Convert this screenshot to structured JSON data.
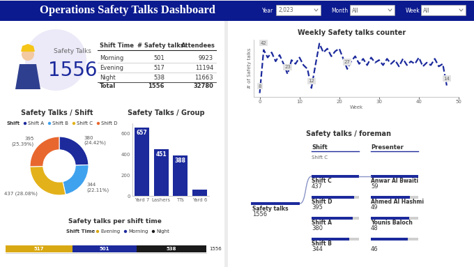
{
  "header": {
    "title": "Operations Safety Talks Dashboard",
    "filters": [
      {
        "label": "Year",
        "value": "2,023"
      },
      {
        "label": "Month",
        "value": "All"
      },
      {
        "label": "Week",
        "value": "All"
      }
    ]
  },
  "kpi": {
    "label": "Safety Talks",
    "value": 1556
  },
  "table": {
    "columns": [
      "Shift Time",
      "# Safety talks",
      "Attendees"
    ],
    "rows": [
      [
        "Morning",
        501,
        9923
      ],
      [
        "Evening",
        517,
        11194
      ],
      [
        "Night",
        538,
        11663
      ],
      [
        "Total",
        1556,
        32780
      ]
    ]
  },
  "chart_data": [
    {
      "type": "donut",
      "title": "Safety Talks / Shift",
      "legend_title": "Shift",
      "legend": "top",
      "categories": [
        "Shift A",
        "Shift B",
        "Shift C",
        "Shift D"
      ],
      "values": [
        380,
        344,
        437,
        395
      ],
      "value_labels": [
        "380\n(24.42%)",
        "344\n(22.11%)",
        "437 (28.08%)",
        "395\n(25.39%)"
      ],
      "colors": [
        "#1c2a9c",
        "#3fa2ee",
        "#e3b21a",
        "#e8672f"
      ]
    },
    {
      "type": "bar",
      "title": "Safety Talks / Group",
      "categories": [
        "Yard 7",
        "Lashers",
        "TTs",
        "Yard 6"
      ],
      "values": [
        657,
        451,
        388,
        60
      ],
      "value_labels": [
        "657",
        "451",
        "388",
        null
      ],
      "color": "#1c2a9c",
      "ylim": [
        0,
        700
      ],
      "yticks": [
        0,
        200,
        400,
        600
      ],
      "grid": false
    },
    {
      "type": "bar",
      "orientation": "horizontal",
      "stacked": true,
      "data_labels": true,
      "title": "Safety talks per shift time",
      "legend_title": "Shift Time",
      "legend": "top",
      "categories": [
        null
      ],
      "series": [
        {
          "name": "Evening",
          "color": "#d9a914",
          "values": [
            517
          ]
        },
        {
          "name": "Morning",
          "color": "#1c2a9c",
          "values": [
            501
          ]
        },
        {
          "name": "Night",
          "color": "#1a1a1a",
          "values": [
            538
          ]
        }
      ],
      "annotation": "1556",
      "xlim": [
        0,
        1556
      ],
      "tick_labels": false
    },
    {
      "type": "line",
      "title": "Weekly Safety talks counter",
      "x_label": "Week",
      "y_label": "# of Safety talks",
      "x": [
        0,
        1,
        2,
        3,
        4,
        5,
        6,
        7,
        8,
        9,
        10,
        11,
        12,
        13,
        14,
        15,
        16,
        17,
        18,
        19,
        20,
        21,
        22,
        23,
        24,
        25,
        26,
        27,
        28,
        29,
        30,
        31,
        32,
        33,
        34,
        35,
        36,
        37,
        38,
        39,
        40,
        41,
        42,
        43,
        44,
        45,
        46,
        47
      ],
      "values": [
        8,
        42,
        36,
        40,
        33,
        38,
        31,
        23,
        34,
        31,
        36,
        30,
        27,
        12,
        30,
        47,
        40,
        43,
        37,
        41,
        43,
        35,
        27,
        33,
        37,
        31,
        35,
        30,
        36,
        32,
        34,
        30,
        35,
        31,
        34,
        29,
        35,
        30,
        33,
        31,
        36,
        29,
        32,
        30,
        35,
        29,
        31,
        14
      ],
      "value_labels": [
        "8",
        "42",
        null,
        null,
        null,
        null,
        null,
        "23",
        null,
        null,
        null,
        null,
        null,
        "12",
        null,
        null,
        null,
        null,
        null,
        null,
        null,
        null,
        "27",
        null,
        null,
        null,
        null,
        null,
        null,
        null,
        null,
        null,
        null,
        null,
        null,
        null,
        null,
        null,
        null,
        null,
        null,
        null,
        null,
        null,
        null,
        null,
        null,
        "14"
      ],
      "color": "#1c2a9c",
      "line_style": "dashed",
      "xlim": [
        -1.5,
        50
      ],
      "xticks": [
        0,
        10,
        20,
        30,
        40,
        50
      ],
      "ylim": [
        5,
        50
      ],
      "tick_labels": "x"
    },
    {
      "type": "tree",
      "title": "Safety talks / foreman",
      "color": "#1c2a9c",
      "root": {
        "label": "Safety talks",
        "value": 1556
      },
      "levels": [
        {
          "name": "Shift",
          "selected": "Shift C",
          "nodes": [
            {
              "label": "Shift C",
              "value": 437
            },
            {
              "label": "Shift D",
              "value": 395
            },
            {
              "label": "Shift A",
              "value": 380
            },
            {
              "label": "Shift B",
              "value": 344
            }
          ]
        },
        {
          "name": "Presenter",
          "nodes": [
            {
              "label": "Anwar Al Bwaiti",
              "value": 59
            },
            {
              "label": "Ahmed Al Hashmi",
              "value": 49
            },
            {
              "label": "Younis Baloch",
              "value": 48
            },
            {
              "label": null,
              "value": 46
            }
          ]
        }
      ]
    }
  ]
}
